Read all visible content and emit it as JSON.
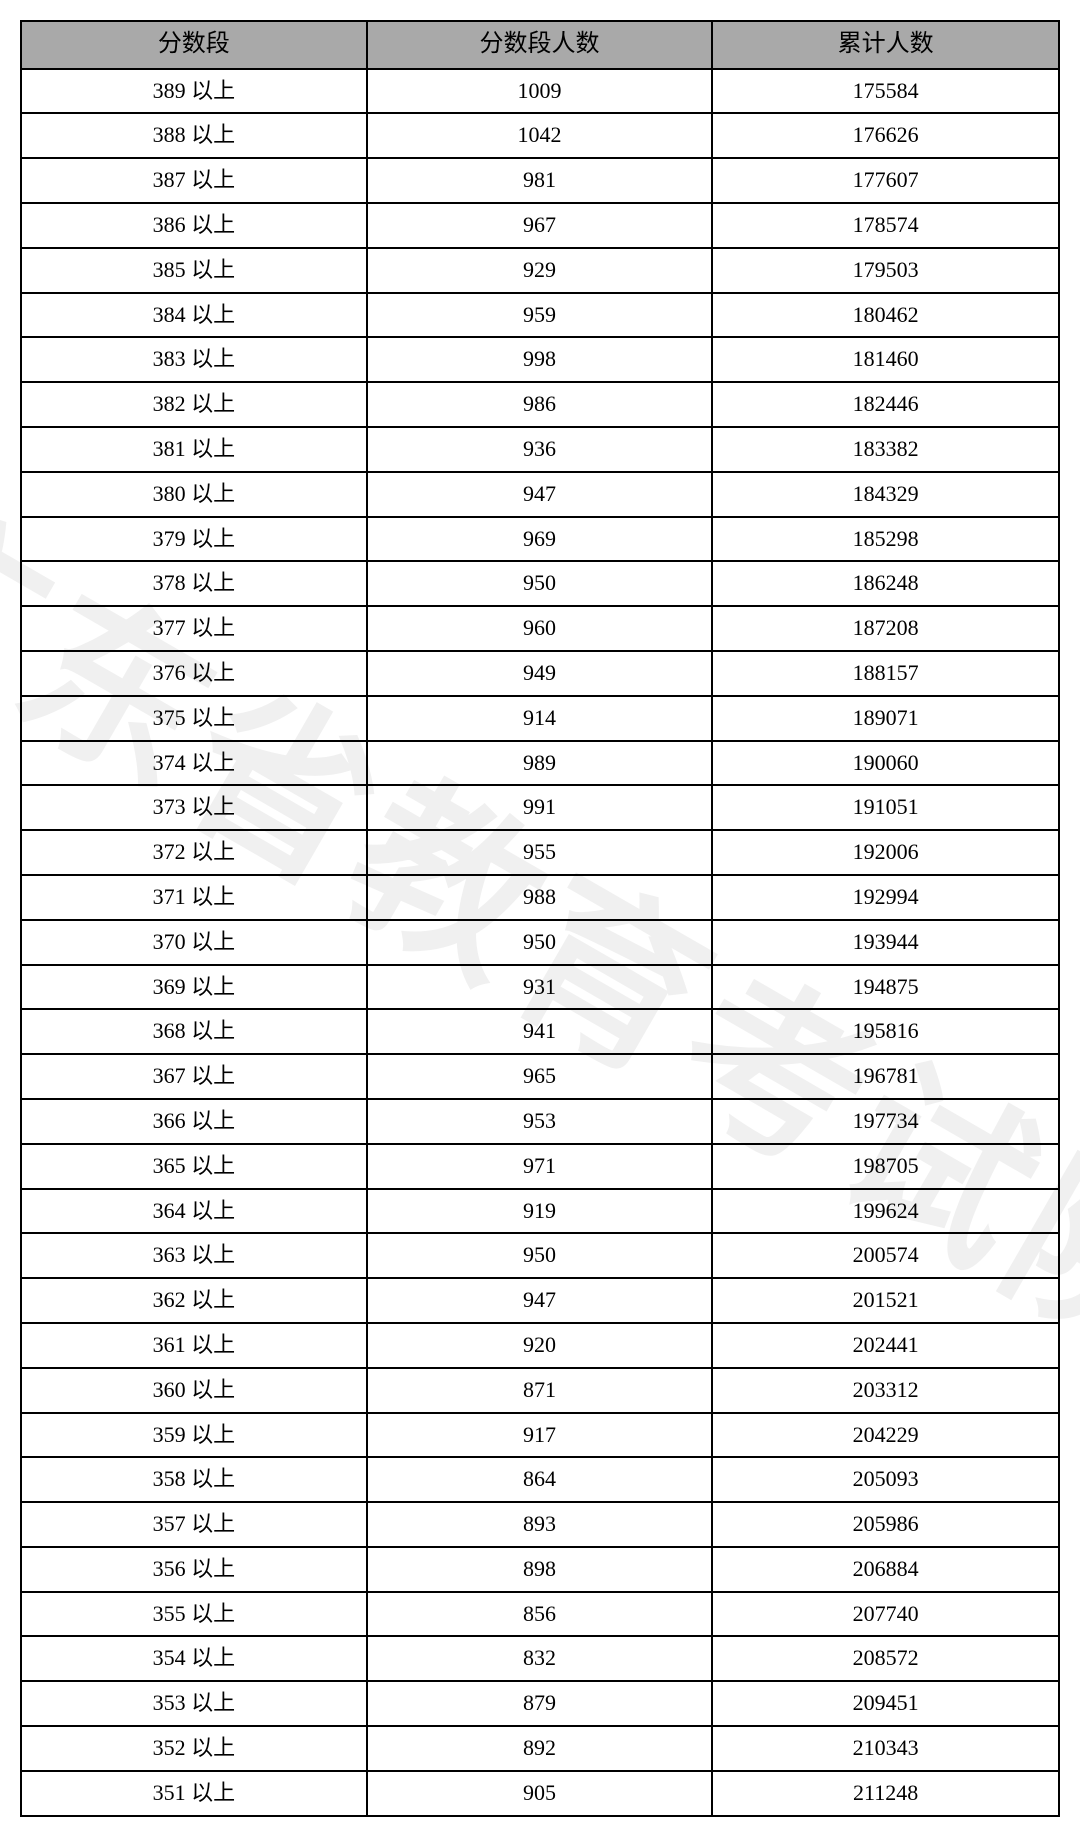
{
  "watermark_text": "广东省教育考试院",
  "table": {
    "type": "table",
    "background_color": "#ffffff",
    "header_bg_color": "#a9a9a9",
    "border_color": "#000000",
    "text_color": "#000000",
    "font_size": 22,
    "header_font_size": 24,
    "column_widths": [
      "33.3%",
      "33.3%",
      "33.4%"
    ],
    "columns": [
      "分数段",
      "分数段人数",
      "累计人数"
    ],
    "rows": [
      [
        "389 以上",
        "1009",
        "175584"
      ],
      [
        "388 以上",
        "1042",
        "176626"
      ],
      [
        "387 以上",
        "981",
        "177607"
      ],
      [
        "386 以上",
        "967",
        "178574"
      ],
      [
        "385 以上",
        "929",
        "179503"
      ],
      [
        "384 以上",
        "959",
        "180462"
      ],
      [
        "383 以上",
        "998",
        "181460"
      ],
      [
        "382 以上",
        "986",
        "182446"
      ],
      [
        "381 以上",
        "936",
        "183382"
      ],
      [
        "380 以上",
        "947",
        "184329"
      ],
      [
        "379 以上",
        "969",
        "185298"
      ],
      [
        "378 以上",
        "950",
        "186248"
      ],
      [
        "377 以上",
        "960",
        "187208"
      ],
      [
        "376 以上",
        "949",
        "188157"
      ],
      [
        "375 以上",
        "914",
        "189071"
      ],
      [
        "374 以上",
        "989",
        "190060"
      ],
      [
        "373 以上",
        "991",
        "191051"
      ],
      [
        "372 以上",
        "955",
        "192006"
      ],
      [
        "371 以上",
        "988",
        "192994"
      ],
      [
        "370 以上",
        "950",
        "193944"
      ],
      [
        "369 以上",
        "931",
        "194875"
      ],
      [
        "368 以上",
        "941",
        "195816"
      ],
      [
        "367 以上",
        "965",
        "196781"
      ],
      [
        "366 以上",
        "953",
        "197734"
      ],
      [
        "365 以上",
        "971",
        "198705"
      ],
      [
        "364 以上",
        "919",
        "199624"
      ],
      [
        "363 以上",
        "950",
        "200574"
      ],
      [
        "362 以上",
        "947",
        "201521"
      ],
      [
        "361 以上",
        "920",
        "202441"
      ],
      [
        "360 以上",
        "871",
        "203312"
      ],
      [
        "359 以上",
        "917",
        "204229"
      ],
      [
        "358 以上",
        "864",
        "205093"
      ],
      [
        "357 以上",
        "893",
        "205986"
      ],
      [
        "356 以上",
        "898",
        "206884"
      ],
      [
        "355 以上",
        "856",
        "207740"
      ],
      [
        "354 以上",
        "832",
        "208572"
      ],
      [
        "353 以上",
        "879",
        "209451"
      ],
      [
        "352 以上",
        "892",
        "210343"
      ],
      [
        "351 以上",
        "905",
        "211248"
      ]
    ]
  }
}
